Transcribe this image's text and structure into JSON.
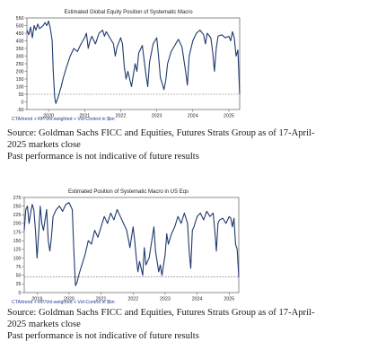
{
  "charts": [
    {
      "legend": "CTA/trend + RP/Vol-weighted + Vol-Control in $bn",
      "source_line1": "Source: Goldman Sachs FICC and Equities, Futures Strats Group as of 17-April-",
      "source_line2": "2025 markets close",
      "disclaimer": "Past performance is not indicative of future results"
    },
    {
      "legend": "CTA/trend + RP/Vol-weighted + Vol-Control in $bn",
      "source_line1": "Source: Goldman Sachs FICC and Equities, Futures Strats Group as of 17-April-",
      "source_line2": "2025 markets close",
      "disclaimer": "Past performance is not indicative of future results"
    }
  ],
  "chart_data": [
    {
      "type": "line",
      "title": "Estimated Global Equity Position of Systematic Macro",
      "xlabel": "",
      "ylabel": "",
      "xlim": [
        2019.4,
        2025.3
      ],
      "ylim": [
        -50,
        550
      ],
      "yticks": [
        -50,
        0,
        50,
        100,
        150,
        200,
        250,
        300,
        350,
        400,
        450,
        500,
        550
      ],
      "xticks": [
        2020,
        2021,
        2022,
        2023,
        2024,
        2025
      ],
      "reference_line": 50,
      "line_color": "#1f3a6e",
      "reference_color": "#555555",
      "series": [
        {
          "x": [
            2019.4,
            2019.45,
            2019.5,
            2019.55,
            2019.6,
            2019.65,
            2019.7,
            2019.75,
            2019.8,
            2019.85,
            2019.9,
            2019.95,
            2020.0,
            2020.05,
            2020.1,
            2020.13,
            2020.17,
            2020.2,
            2020.25,
            2020.3,
            2020.35,
            2020.4,
            2020.5,
            2020.6,
            2020.7,
            2020.8,
            2020.9,
            2021.0,
            2021.05,
            2021.1,
            2021.15,
            2021.2,
            2021.3,
            2021.4,
            2021.5,
            2021.55,
            2021.6,
            2021.7,
            2021.8,
            2021.85,
            2021.9,
            2022.0,
            2022.05,
            2022.1,
            2022.15,
            2022.2,
            2022.3,
            2022.4,
            2022.45,
            2022.5,
            2022.6,
            2022.7,
            2022.75,
            2022.8,
            2022.9,
            2023.0,
            2023.05,
            2023.1,
            2023.2,
            2023.25,
            2023.3,
            2023.4,
            2023.5,
            2023.6,
            2023.7,
            2023.8,
            2023.85,
            2023.9,
            2024.0,
            2024.1,
            2024.2,
            2024.3,
            2024.35,
            2024.4,
            2024.5,
            2024.55,
            2024.6,
            2024.65,
            2024.7,
            2024.8,
            2024.9,
            2025.0,
            2025.05,
            2025.1,
            2025.15,
            2025.2,
            2025.25,
            2025.3
          ],
          "y": [
            470,
            440,
            490,
            420,
            500,
            470,
            510,
            480,
            490,
            500,
            520,
            500,
            530,
            480,
            400,
            200,
            30,
            -10,
            20,
            60,
            100,
            150,
            230,
            300,
            350,
            330,
            380,
            420,
            450,
            350,
            400,
            430,
            380,
            450,
            470,
            430,
            460,
            420,
            380,
            300,
            360,
            420,
            380,
            230,
            150,
            200,
            100,
            250,
            200,
            320,
            370,
            180,
            100,
            260,
            380,
            420,
            300,
            160,
            80,
            140,
            250,
            330,
            370,
            410,
            360,
            200,
            110,
            300,
            400,
            450,
            470,
            440,
            380,
            450,
            420,
            330,
            200,
            350,
            430,
            440,
            420,
            430,
            400,
            460,
            420,
            300,
            340,
            50
          ]
        }
      ]
    },
    {
      "type": "line",
      "title": "Estimated Position of Systematic Macro in US Eqs",
      "xlabel": "",
      "ylabel": "",
      "xlim": [
        2018.6,
        2025.3
      ],
      "ylim": [
        0,
        275
      ],
      "yticks": [
        0,
        25,
        50,
        75,
        100,
        125,
        150,
        175,
        200,
        225,
        250,
        275
      ],
      "xticks": [
        2019,
        2020,
        2021,
        2022,
        2023,
        2024,
        2025
      ],
      "reference_line": 45,
      "line_color": "#1f3a6e",
      "reference_color": "#555555",
      "series": [
        {
          "x": [
            2018.6,
            2018.65,
            2018.7,
            2018.75,
            2018.8,
            2018.85,
            2018.9,
            2018.95,
            2019.0,
            2019.05,
            2019.1,
            2019.15,
            2019.2,
            2019.3,
            2019.35,
            2019.4,
            2019.45,
            2019.5,
            2019.6,
            2019.7,
            2019.8,
            2019.9,
            2020.0,
            2020.05,
            2020.1,
            2020.15,
            2020.2,
            2020.25,
            2020.3,
            2020.4,
            2020.5,
            2020.6,
            2020.7,
            2020.8,
            2020.9,
            2021.0,
            2021.1,
            2021.2,
            2021.3,
            2021.4,
            2021.5,
            2021.6,
            2021.7,
            2021.8,
            2021.9,
            2022.0,
            2022.05,
            2022.1,
            2022.15,
            2022.2,
            2022.3,
            2022.35,
            2022.4,
            2022.5,
            2022.6,
            2022.65,
            2022.7,
            2022.8,
            2022.85,
            2022.9,
            2023.0,
            2023.05,
            2023.1,
            2023.2,
            2023.3,
            2023.4,
            2023.5,
            2023.6,
            2023.7,
            2023.75,
            2023.8,
            2023.85,
            2023.9,
            2024.0,
            2024.1,
            2024.2,
            2024.3,
            2024.4,
            2024.5,
            2024.55,
            2024.6,
            2024.65,
            2024.7,
            2024.8,
            2024.9,
            2025.0,
            2025.05,
            2025.1,
            2025.15,
            2025.2,
            2025.25,
            2025.3
          ],
          "y": [
            180,
            240,
            250,
            200,
            230,
            255,
            240,
            180,
            100,
            170,
            250,
            200,
            180,
            240,
            150,
            120,
            160,
            220,
            240,
            250,
            235,
            255,
            260,
            250,
            240,
            120,
            20,
            30,
            50,
            80,
            110,
            150,
            140,
            180,
            160,
            190,
            220,
            200,
            230,
            210,
            240,
            220,
            200,
            180,
            130,
            190,
            150,
            100,
            60,
            90,
            50,
            130,
            80,
            100,
            160,
            190,
            120,
            60,
            80,
            50,
            110,
            170,
            140,
            170,
            190,
            220,
            200,
            230,
            200,
            120,
            70,
            180,
            190,
            220,
            230,
            210,
            235,
            220,
            230,
            180,
            120,
            200,
            210,
            215,
            200,
            220,
            215,
            190,
            215,
            140,
            125,
            45
          ]
        }
      ]
    }
  ]
}
